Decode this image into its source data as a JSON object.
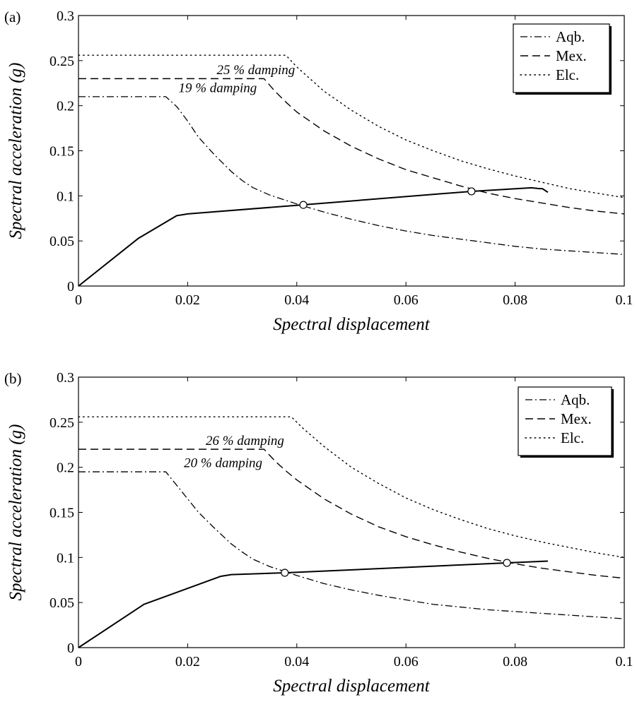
{
  "chart_data": [
    {
      "type": "line",
      "panel_label": "(a)",
      "xlabel": "Spectral displacement",
      "ylabel": "Spectral acceleration (g)",
      "xlim": [
        0,
        0.1
      ],
      "ylim": [
        0,
        0.3
      ],
      "xticks": [
        "0",
        "0.02",
        "0.04",
        "0.06",
        "0.08",
        "0.1"
      ],
      "yticks": [
        "0",
        "0.05",
        "0.1",
        "0.15",
        "0.2",
        "0.25",
        "0.3"
      ],
      "legend": {
        "position": "top-right",
        "entries": [
          "Aqb.",
          "Mex.",
          "Elc."
        ]
      },
      "annotations": [
        {
          "text": "25 % damping",
          "x": 0.0325,
          "y": 0.235
        },
        {
          "text": "19 % damping",
          "x": 0.0255,
          "y": 0.215
        }
      ],
      "series": [
        {
          "name": "Aqb.",
          "style": "dashdot",
          "x": [
            0,
            0.016,
            0.018,
            0.02,
            0.022,
            0.025,
            0.028,
            0.03,
            0.032,
            0.035,
            0.038,
            0.04,
            0.045,
            0.05,
            0.055,
            0.06,
            0.065,
            0.07,
            0.075,
            0.08,
            0.085,
            0.09,
            0.095,
            0.1
          ],
          "y": [
            0.21,
            0.21,
            0.199,
            0.183,
            0.165,
            0.145,
            0.127,
            0.117,
            0.109,
            0.101,
            0.095,
            0.091,
            0.082,
            0.074,
            0.067,
            0.061,
            0.056,
            0.052,
            0.048,
            0.044,
            0.041,
            0.039,
            0.037,
            0.035
          ]
        },
        {
          "name": "Mex.",
          "style": "dashed",
          "x": [
            0,
            0.034,
            0.036,
            0.038,
            0.04,
            0.045,
            0.05,
            0.055,
            0.06,
            0.065,
            0.07,
            0.075,
            0.08,
            0.085,
            0.09,
            0.095,
            0.1
          ],
          "y": [
            0.23,
            0.23,
            0.216,
            0.204,
            0.193,
            0.172,
            0.155,
            0.141,
            0.129,
            0.12,
            0.111,
            0.103,
            0.097,
            0.092,
            0.087,
            0.083,
            0.08
          ]
        },
        {
          "name": "Elc.",
          "style": "dotted",
          "x": [
            0,
            0.038,
            0.04,
            0.045,
            0.05,
            0.055,
            0.06,
            0.065,
            0.07,
            0.075,
            0.08,
            0.085,
            0.09,
            0.095,
            0.1
          ],
          "y": [
            0.256,
            0.256,
            0.243,
            0.216,
            0.195,
            0.177,
            0.162,
            0.15,
            0.139,
            0.13,
            0.122,
            0.115,
            0.108,
            0.103,
            0.098
          ]
        },
        {
          "style": "solid",
          "x": [
            0,
            0.011,
            0.018,
            0.02,
            0.041,
            0.072,
            0.083,
            0.0845,
            0.085,
            0.0855,
            0.086
          ],
          "y": [
            0,
            0.053,
            0.078,
            0.08,
            0.09,
            0.105,
            0.109,
            0.108,
            0.108,
            0.106,
            0.104
          ]
        }
      ],
      "markers": [
        {
          "x": 0.0412,
          "y": 0.09
        },
        {
          "x": 0.072,
          "y": 0.105
        }
      ]
    },
    {
      "type": "line",
      "panel_label": "(b)",
      "xlabel": "Spectral displacement",
      "ylabel": "Spectral acceleration (g)",
      "xlim": [
        0,
        0.1
      ],
      "ylim": [
        0,
        0.3
      ],
      "xticks": [
        "0",
        "0.02",
        "0.04",
        "0.06",
        "0.08",
        "0.1"
      ],
      "yticks": [
        "0",
        "0.05",
        "0.1",
        "0.15",
        "0.2",
        "0.25",
        "0.3"
      ],
      "legend": {
        "position": "top-right",
        "entries": [
          "Aqb.",
          "Mex.",
          "Elc."
        ]
      },
      "annotations": [
        {
          "text": "26 % damping",
          "x": 0.0305,
          "y": 0.225
        },
        {
          "text": "20 % damping",
          "x": 0.0265,
          "y": 0.2
        }
      ],
      "series": [
        {
          "name": "Aqb.",
          "style": "dashdot",
          "x": [
            0,
            0.016,
            0.018,
            0.02,
            0.022,
            0.025,
            0.028,
            0.03,
            0.032,
            0.035,
            0.038,
            0.04,
            0.045,
            0.05,
            0.055,
            0.06,
            0.065,
            0.07,
            0.075,
            0.08,
            0.085,
            0.09,
            0.095,
            0.1
          ],
          "y": [
            0.195,
            0.195,
            0.18,
            0.165,
            0.15,
            0.132,
            0.115,
            0.106,
            0.098,
            0.09,
            0.084,
            0.08,
            0.071,
            0.064,
            0.058,
            0.053,
            0.048,
            0.045,
            0.042,
            0.04,
            0.038,
            0.036,
            0.034,
            0.032
          ]
        },
        {
          "name": "Mex.",
          "style": "dashed",
          "x": [
            0,
            0.034,
            0.036,
            0.038,
            0.04,
            0.045,
            0.05,
            0.055,
            0.06,
            0.065,
            0.07,
            0.075,
            0.08,
            0.085,
            0.09,
            0.095,
            0.1
          ],
          "y": [
            0.22,
            0.22,
            0.207,
            0.196,
            0.186,
            0.165,
            0.148,
            0.134,
            0.123,
            0.114,
            0.106,
            0.099,
            0.093,
            0.088,
            0.084,
            0.08,
            0.077
          ]
        },
        {
          "name": "Elc.",
          "style": "dotted",
          "x": [
            0,
            0.039,
            0.041,
            0.045,
            0.05,
            0.055,
            0.06,
            0.065,
            0.07,
            0.075,
            0.08,
            0.085,
            0.09,
            0.095,
            0.1
          ],
          "y": [
            0.256,
            0.256,
            0.244,
            0.223,
            0.2,
            0.182,
            0.166,
            0.153,
            0.142,
            0.132,
            0.124,
            0.117,
            0.111,
            0.105,
            0.1
          ]
        },
        {
          "style": "solid",
          "x": [
            0,
            0.012,
            0.026,
            0.028,
            0.038,
            0.0785,
            0.086
          ],
          "y": [
            0,
            0.048,
            0.079,
            0.081,
            0.083,
            0.094,
            0.096
          ]
        }
      ],
      "markers": [
        {
          "x": 0.0378,
          "y": 0.083
        },
        {
          "x": 0.0785,
          "y": 0.094
        }
      ]
    }
  ]
}
